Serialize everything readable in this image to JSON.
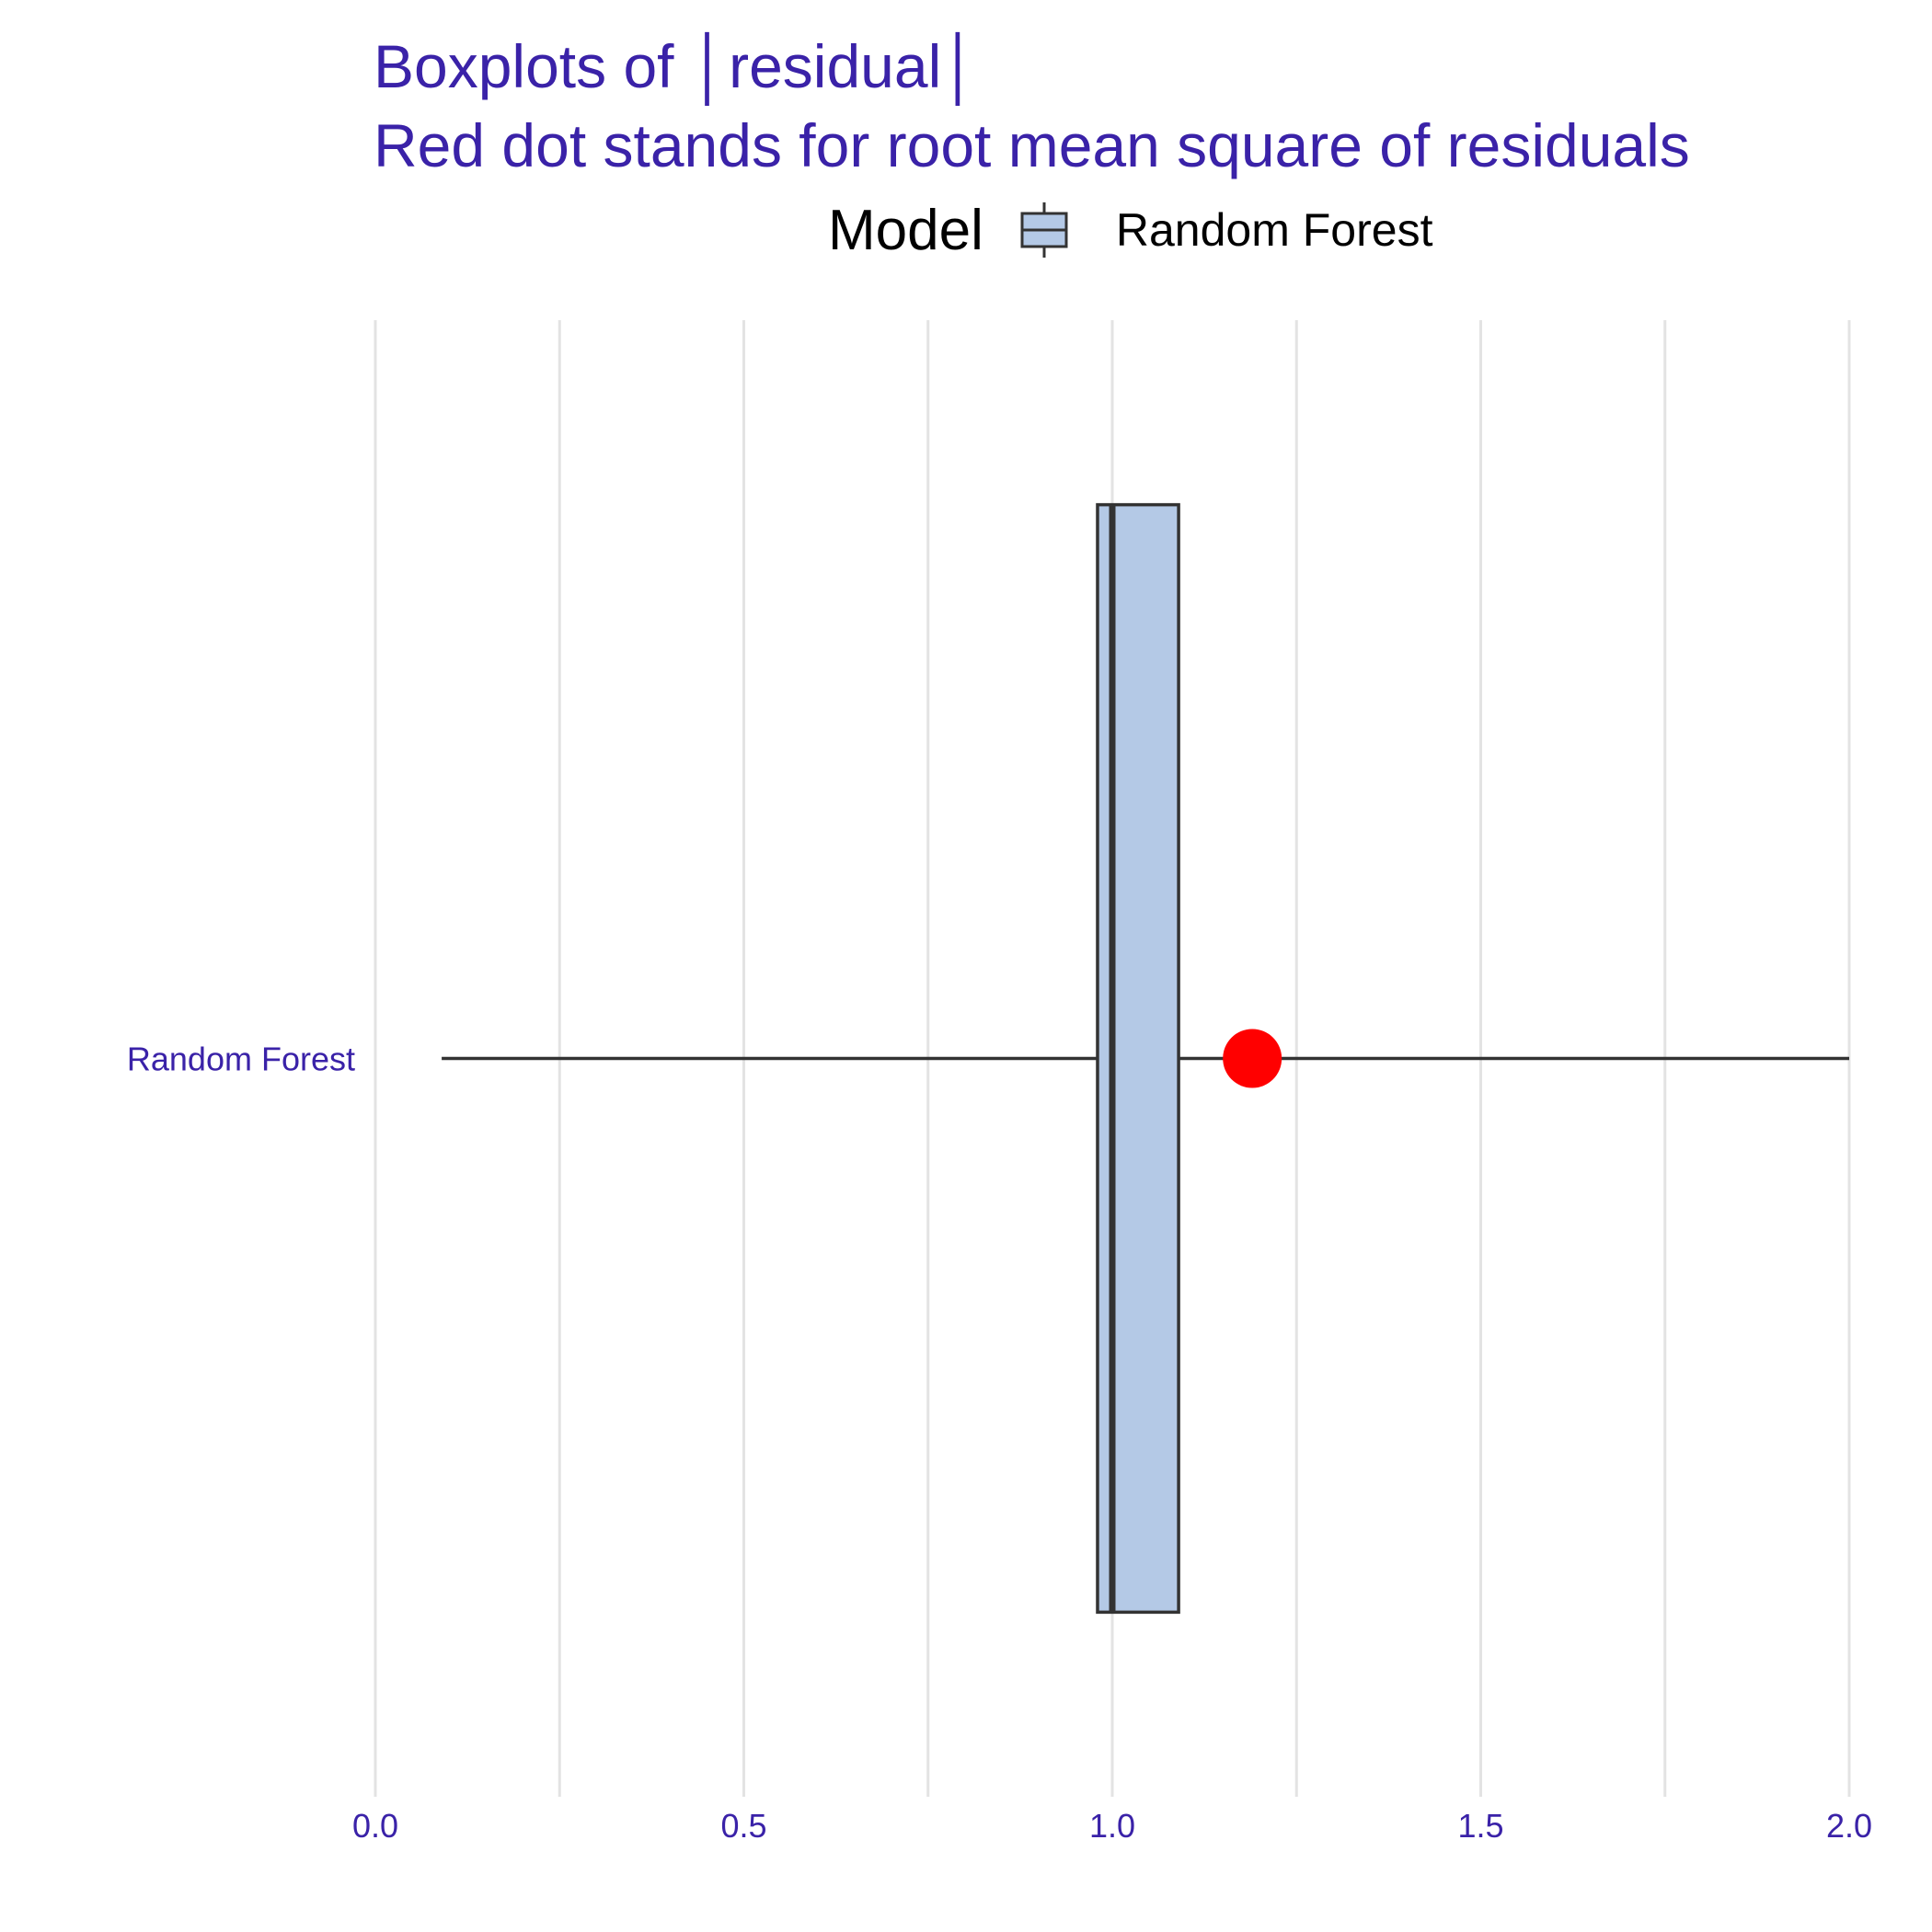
{
  "chart_data": {
    "type": "boxplot",
    "title": "Boxplots of │residual│",
    "subtitle": "Red dot stands for root mean square of residuals",
    "legend": {
      "title": "Model",
      "position": "top",
      "entries": [
        "Random Forest"
      ]
    },
    "xlim": [
      0,
      2
    ],
    "xticks": [
      "0.0",
      "0.5",
      "1.0",
      "1.5",
      "2.0"
    ],
    "xtick_values": [
      0,
      0.5,
      1.0,
      1.5,
      2.0
    ],
    "grid": true,
    "categories": [
      "Random Forest"
    ],
    "series": [
      {
        "name": "Random Forest",
        "min": 0.09,
        "q1": 0.98,
        "median": 1.0,
        "q3": 1.09,
        "max": 2.0,
        "rmse": 1.19
      }
    ],
    "colors": {
      "box_fill": "#b4c9e6",
      "box_stroke": "#333333",
      "rmse_point": "#ff0000",
      "text_accent": "#3a22a8",
      "grid": "#e3e3e3"
    }
  }
}
